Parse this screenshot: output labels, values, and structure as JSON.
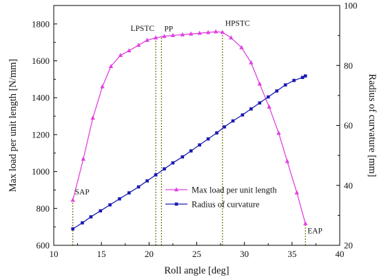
{
  "chart_data": {
    "type": "line",
    "xlabel": "Roll angle [deg]",
    "ylabel": "Max load per unit length [N/mm]",
    "y2label": "Radius of curvature [mm]",
    "xlim": [
      10,
      40
    ],
    "ylim": [
      600,
      1900
    ],
    "y2lim": [
      20,
      100
    ],
    "xticks": [
      10,
      15,
      20,
      25,
      30,
      35,
      40
    ],
    "yticks": [
      600,
      800,
      1000,
      1200,
      1400,
      1600,
      1800
    ],
    "y2ticks": [
      20,
      40,
      60,
      80,
      100
    ],
    "legend_position": "lower-right",
    "grid": false,
    "series": [
      {
        "name": "Max load per unit length",
        "axis": "left",
        "color": "#e040e0",
        "marker": "triangle",
        "x": [
          12.0,
          13.1,
          14.1,
          15.1,
          16.0,
          17.0,
          17.9,
          18.9,
          19.8,
          20.7,
          21.6,
          22.5,
          23.5,
          24.4,
          25.3,
          26.2,
          27.0,
          27.7,
          28.6,
          29.7,
          30.7,
          31.6,
          32.6,
          33.6,
          34.5,
          35.5,
          36.4
        ],
        "y": [
          845,
          1068,
          1290,
          1460,
          1570,
          1630,
          1655,
          1685,
          1712,
          1725,
          1733,
          1738,
          1742,
          1746,
          1750,
          1754,
          1758,
          1755,
          1725,
          1672,
          1590,
          1475,
          1350,
          1208,
          1055,
          885,
          718
        ]
      },
      {
        "name": "Radius of curvature",
        "axis": "right",
        "color": "#1a1ab5",
        "marker": "square",
        "x": [
          12.0,
          13.0,
          13.9,
          14.9,
          15.9,
          16.9,
          17.9,
          18.9,
          19.8,
          20.7,
          21.6,
          22.5,
          23.5,
          24.4,
          25.3,
          26.2,
          27.1,
          27.9,
          28.8,
          29.8,
          30.7,
          31.6,
          32.5,
          33.4,
          34.3,
          35.2,
          36.1,
          36.4
        ],
        "y": [
          25.5,
          27.5,
          29.5,
          31.5,
          33.5,
          35.5,
          37.5,
          39.5,
          41.5,
          43.5,
          45.5,
          47.5,
          49.5,
          51.5,
          53.5,
          55.5,
          57.5,
          59.5,
          61.5,
          63.5,
          65.5,
          67.5,
          69.5,
          71.5,
          73.5,
          75.0,
          76.0,
          76.5
        ]
      }
    ],
    "annotations": [
      {
        "label": "SAP",
        "x": 12.0,
        "y": 845
      },
      {
        "label": "LPSTC",
        "x": 20.7,
        "y": 1725
      },
      {
        "label": "PP",
        "x": 21.3,
        "y": 1735
      },
      {
        "label": "HPSTC",
        "x": 27.7,
        "y": 1757
      },
      {
        "label": "EAP",
        "x": 36.4,
        "y": 718
      }
    ]
  }
}
